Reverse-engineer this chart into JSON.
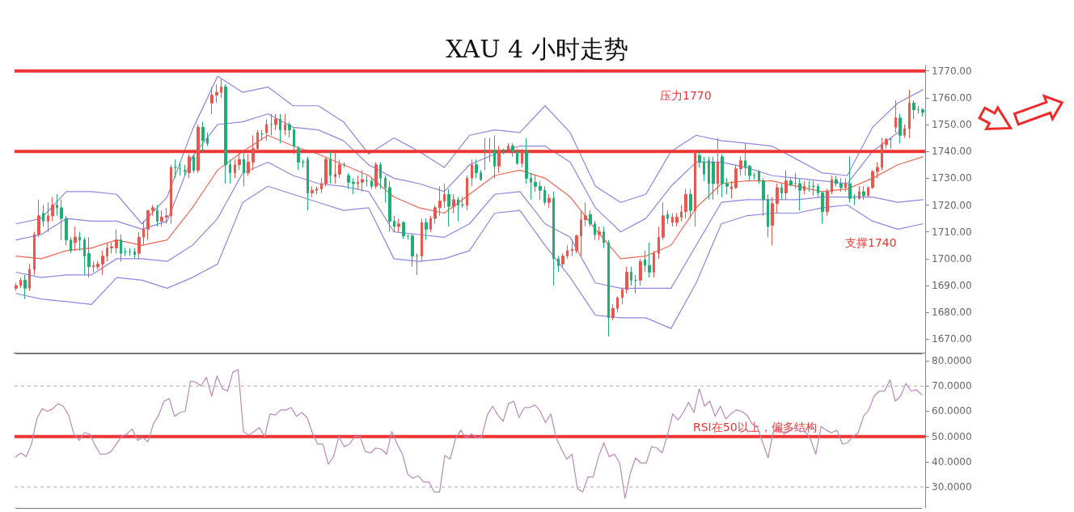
{
  "chart_data": [
    {
      "type": "candlestick",
      "title": "XAU 4 小时走势",
      "categories": [
        null,
        null,
        null,
        null,
        null,
        null,
        null,
        null,
        null,
        null,
        null,
        null,
        null,
        null,
        null,
        null,
        null,
        null,
        null,
        null,
        null,
        null,
        null,
        null,
        null,
        null,
        null,
        null,
        null,
        null,
        null,
        null,
        null,
        null,
        null,
        null,
        null,
        null,
        null,
        null,
        null,
        null,
        null,
        null,
        null,
        null,
        null,
        null,
        null,
        null,
        null,
        null,
        null,
        null,
        null,
        null,
        null,
        null,
        null,
        null,
        null,
        null,
        null,
        null,
        null,
        null,
        null,
        null,
        null,
        null,
        null,
        null,
        null,
        null,
        null,
        null,
        null,
        null,
        null,
        null,
        null,
        null,
        null,
        null,
        null,
        null,
        null,
        null,
        null,
        null,
        null,
        null,
        null,
        null,
        null,
        null,
        null,
        null,
        null,
        null,
        null,
        null,
        null,
        null,
        null,
        null,
        null,
        null,
        null,
        null,
        null,
        null,
        null,
        null,
        null,
        null,
        null,
        null,
        null,
        null,
        null,
        null,
        null,
        null,
        null,
        null,
        null,
        null,
        null,
        null,
        null,
        null,
        null,
        null,
        null,
        null,
        null,
        null,
        null,
        null,
        null,
        null,
        null,
        null,
        null,
        null,
        null,
        null,
        null,
        null,
        null,
        null,
        null,
        null,
        null,
        null,
        null,
        null,
        null,
        null,
        null,
        null,
        null,
        null,
        null,
        null,
        null,
        null,
        null,
        null,
        null,
        null,
        null,
        null,
        null,
        null,
        null,
        null,
        null,
        null,
        null,
        null,
        null,
        null,
        null,
        null,
        null,
        null,
        null,
        null,
        null,
        null,
        null,
        null,
        null,
        null,
        null,
        null,
        null,
        null
      ],
      "ohlc": [
        [
          1689,
          1691,
          1688,
          1690
        ],
        [
          1690,
          1693,
          1689,
          1692
        ],
        [
          1692,
          1694,
          1685,
          1689
        ],
        [
          1689,
          1698,
          1688,
          1696
        ],
        [
          1696,
          1710,
          1694,
          1709
        ],
        [
          1709,
          1722,
          1708,
          1716
        ],
        [
          1717,
          1720,
          1712,
          1714
        ],
        [
          1714,
          1721,
          1710,
          1716
        ],
        [
          1716,
          1723,
          1714,
          1720
        ],
        [
          1720,
          1724,
          1716,
          1719
        ],
        [
          1719,
          1722,
          1707,
          1715
        ],
        [
          1715,
          1716,
          1705,
          1707
        ],
        [
          1707,
          1708,
          1702,
          1703
        ],
        [
          1706,
          1712,
          1703,
          1708
        ],
        [
          1708,
          1710,
          1703,
          1707
        ],
        [
          1707,
          1708,
          1694,
          1701
        ],
        [
          1702,
          1708,
          1693,
          1697
        ],
        [
          1697,
          1699,
          1695,
          1697.5
        ],
        [
          1697,
          1699,
          1696,
          1698
        ],
        [
          1698,
          1703,
          1694,
          1701
        ],
        [
          1701,
          1706,
          1699,
          1704
        ],
        [
          1704,
          1706,
          1702,
          1704.5
        ],
        [
          1704,
          1711,
          1702,
          1707
        ],
        [
          1707,
          1709,
          1699,
          1702
        ],
        [
          1702.5,
          1704,
          1701,
          1702.5
        ],
        [
          1702.5,
          1704,
          1701,
          1702.5
        ],
        [
          1702.5,
          1704,
          1700,
          1701.5
        ],
        [
          1702,
          1710,
          1700,
          1708
        ],
        [
          1708,
          1714,
          1705,
          1711
        ],
        [
          1711,
          1718,
          1707,
          1718
        ],
        [
          1718,
          1720,
          1716,
          1719
        ],
        [
          1718,
          1720,
          1712,
          1714
        ],
        [
          1714,
          1718,
          1712,
          1715.5
        ],
        [
          1715.5,
          1719,
          1713,
          1716
        ],
        [
          1716,
          1735,
          1713,
          1734
        ],
        [
          1734,
          1737,
          1730,
          1734
        ],
        [
          1733.5,
          1736,
          1731,
          1733.5
        ],
        [
          1733,
          1735,
          1731,
          1732.5
        ],
        [
          1732,
          1739,
          1730,
          1738
        ],
        [
          1738,
          1739,
          1732,
          1733
        ],
        [
          1733,
          1750,
          1732,
          1749
        ],
        [
          1749,
          1751,
          1740,
          1744
        ],
        [
          1745,
          1747,
          1742,
          1743
        ],
        [
          1758,
          1764,
          1754,
          1761
        ],
        [
          1761,
          1765,
          1758,
          1762
        ],
        [
          1762,
          1767,
          1760,
          1764
        ],
        [
          1764,
          1765,
          1728,
          1735
        ],
        [
          1735,
          1737,
          1728,
          1732
        ],
        [
          1732,
          1737,
          1730,
          1735
        ],
        [
          1735,
          1740,
          1733,
          1737
        ],
        [
          1737,
          1740,
          1727,
          1732
        ],
        [
          1732,
          1739,
          1731,
          1736
        ],
        [
          1736,
          1746,
          1733,
          1741
        ],
        [
          1741,
          1748,
          1740,
          1747
        ],
        [
          1746.5,
          1748,
          1744,
          1746.5
        ],
        [
          1747,
          1752,
          1744,
          1750
        ],
        [
          1750,
          1754,
          1746,
          1750
        ],
        [
          1750,
          1754,
          1748,
          1752
        ],
        [
          1752,
          1754,
          1743,
          1748
        ],
        [
          1748,
          1754,
          1746,
          1750
        ],
        [
          1750,
          1751,
          1745,
          1748
        ],
        [
          1748,
          1749,
          1739,
          1742
        ],
        [
          1741,
          1742,
          1733,
          1736
        ],
        [
          1736,
          1737,
          1734,
          1736
        ],
        [
          1737,
          1738,
          1718,
          1724.5
        ],
        [
          1724.5,
          1727,
          1723,
          1725.5
        ],
        [
          1725.5,
          1727,
          1724,
          1726
        ],
        [
          1726,
          1730,
          1724.5,
          1728
        ],
        [
          1728,
          1738,
          1727,
          1737
        ],
        [
          1737,
          1740,
          1728,
          1731
        ],
        [
          1730.5,
          1740,
          1728,
          1731.5
        ],
        [
          1731.5,
          1737,
          1730,
          1735
        ],
        [
          1735,
          1736,
          1734,
          1735
        ],
        [
          1731,
          1732,
          1726,
          1728.5
        ],
        [
          1728.5,
          1730,
          1724,
          1728
        ],
        [
          1728,
          1731,
          1726,
          1728.5
        ],
        [
          1728.5,
          1733,
          1725,
          1729.5
        ],
        [
          1729,
          1731,
          1727,
          1729
        ],
        [
          1729,
          1730,
          1726,
          1727
        ],
        [
          1727,
          1736,
          1726,
          1735
        ],
        [
          1735,
          1736,
          1726,
          1730
        ],
        [
          1730,
          1731,
          1721,
          1726.5
        ],
        [
          1726.5,
          1729,
          1710,
          1714
        ],
        [
          1714,
          1716,
          1710,
          1712
        ],
        [
          1712,
          1715,
          1710,
          1713
        ],
        [
          1713.5,
          1714,
          1707.5,
          1708.5
        ],
        [
          1708.5,
          1709,
          1707,
          1708.5
        ],
        [
          1708.5,
          1709,
          1697,
          1701
        ],
        [
          1701,
          1702,
          1694,
          1701
        ],
        [
          1701,
          1715,
          1699,
          1713.5
        ],
        [
          1713.5,
          1715,
          1707,
          1711
        ],
        [
          1711,
          1716,
          1710,
          1715
        ],
        [
          1715,
          1720,
          1713,
          1719
        ],
        [
          1719,
          1727,
          1716,
          1721.5
        ],
        [
          1721.5,
          1728,
          1719,
          1724
        ],
        [
          1724,
          1726,
          1712,
          1719.5
        ],
        [
          1719.5,
          1724,
          1717,
          1722
        ],
        [
          1722,
          1723,
          1714,
          1720
        ],
        [
          1720,
          1723,
          1719,
          1720
        ],
        [
          1720,
          1731,
          1718,
          1730
        ],
        [
          1730,
          1737,
          1727,
          1735
        ],
        [
          1735,
          1737,
          1730,
          1732
        ],
        [
          1732,
          1733,
          1729,
          1729.5
        ],
        [
          1740,
          1745,
          1733,
          1740
        ],
        [
          1739.5,
          1745,
          1736,
          1740.5
        ],
        [
          1740.5,
          1746,
          1730,
          1734.5
        ],
        [
          1734.5,
          1742,
          1732,
          1740.5
        ],
        [
          1740.5,
          1741,
          1739,
          1740.5
        ],
        [
          1740.5,
          1743,
          1739.5,
          1742
        ],
        [
          1742,
          1743,
          1738,
          1740
        ],
        [
          1740,
          1741,
          1735,
          1735.5
        ],
        [
          1735.5,
          1741,
          1734,
          1740
        ],
        [
          1740,
          1745,
          1728,
          1730
        ],
        [
          1730,
          1732,
          1722,
          1728.5
        ],
        [
          1728.5,
          1731,
          1725,
          1727
        ],
        [
          1727,
          1729,
          1722,
          1725.5
        ],
        [
          1725.5,
          1727,
          1720,
          1721
        ],
        [
          1721,
          1724,
          1719,
          1722.5
        ],
        [
          1722.5,
          1725,
          1690,
          1700
        ],
        [
          1700,
          1701,
          1695,
          1697.5
        ],
        [
          1698,
          1702,
          1697,
          1701
        ],
        [
          1701,
          1705,
          1700,
          1703
        ],
        [
          1703,
          1707,
          1701,
          1703.5
        ],
        [
          1703,
          1709,
          1702,
          1708.5
        ],
        [
          1708.5,
          1718,
          1701,
          1714.5
        ],
        [
          1714.5,
          1721,
          1712,
          1716
        ],
        [
          1716.5,
          1718,
          1712,
          1713
        ],
        [
          1713,
          1714,
          1707,
          1709
        ],
        [
          1709,
          1712,
          1707,
          1710
        ],
        [
          1710,
          1712,
          1704,
          1706
        ],
        [
          1706,
          1707,
          1671,
          1678
        ],
        [
          1678,
          1683,
          1677,
          1681.5
        ],
        [
          1681.5,
          1686,
          1680,
          1685.5
        ],
        [
          1685.5,
          1689,
          1683,
          1688.5
        ],
        [
          1688.5,
          1697,
          1687,
          1695
        ],
        [
          1695,
          1697,
          1690,
          1692
        ],
        [
          1692,
          1694,
          1687,
          1692
        ],
        [
          1692,
          1700,
          1690,
          1699
        ],
        [
          1699.5,
          1703,
          1695,
          1697.5
        ],
        [
          1697.5,
          1706,
          1693,
          1695
        ],
        [
          1695,
          1703,
          1693,
          1702
        ],
        [
          1702,
          1712,
          1700,
          1708
        ],
        [
          1708,
          1721,
          1707,
          1716
        ],
        [
          1716.5,
          1718,
          1713,
          1715
        ],
        [
          1713.5,
          1717,
          1712,
          1715.5
        ],
        [
          1713.5,
          1717,
          1712,
          1715.5
        ],
        [
          1715.5,
          1720,
          1714,
          1717.5
        ],
        [
          1717.5,
          1726,
          1715,
          1724
        ],
        [
          1724,
          1726,
          1715,
          1718
        ],
        [
          1718,
          1740,
          1712,
          1739.5
        ],
        [
          1738.5,
          1740,
          1734,
          1736
        ],
        [
          1736,
          1738,
          1729,
          1731.5
        ],
        [
          1736.5,
          1738,
          1722,
          1728
        ],
        [
          1736,
          1738,
          1722,
          1728
        ],
        [
          1728,
          1745,
          1724,
          1736
        ],
        [
          1738,
          1739,
          1723,
          1728
        ],
        [
          1728,
          1730,
          1724,
          1727
        ],
        [
          1726,
          1729,
          1722.5,
          1726.8
        ],
        [
          1726.5,
          1735,
          1726,
          1733.5
        ],
        [
          1733.5,
          1738,
          1731,
          1736.5
        ],
        [
          1736.5,
          1743,
          1731,
          1734
        ],
        [
          1734.5,
          1735,
          1729,
          1731
        ],
        [
          1731,
          1732,
          1729.5,
          1731
        ],
        [
          1732.5,
          1733,
          1728,
          1729
        ],
        [
          1729,
          1730,
          1716,
          1722
        ],
        [
          1722,
          1724,
          1708,
          1712
        ],
        [
          1712.5,
          1723,
          1705,
          1720.5
        ],
        [
          1720.5,
          1728,
          1717,
          1726.5
        ],
        [
          1726.5,
          1728,
          1722,
          1724.5
        ],
        [
          1724.5,
          1733,
          1722,
          1729
        ],
        [
          1729,
          1730,
          1727,
          1727.5
        ],
        [
          1728,
          1732,
          1726,
          1728
        ],
        [
          1728,
          1730,
          1718,
          1725.5
        ],
        [
          1725.5,
          1729,
          1724,
          1727
        ],
        [
          1727,
          1729,
          1725,
          1727
        ],
        [
          1727,
          1729,
          1723.5,
          1727
        ],
        [
          1727,
          1728,
          1723,
          1724.5
        ],
        [
          1724.5,
          1725,
          1713,
          1717.5
        ],
        [
          1717.5,
          1726,
          1716,
          1725
        ],
        [
          1725,
          1731,
          1724,
          1729.5
        ],
        [
          1729.5,
          1731,
          1727,
          1728
        ],
        [
          1728,
          1730,
          1725,
          1726.5
        ],
        [
          1726.5,
          1730,
          1725,
          1728
        ],
        [
          1728,
          1738,
          1721,
          1722.5
        ],
        [
          1722.5,
          1724,
          1720,
          1722.5
        ],
        [
          1722.5,
          1727,
          1722,
          1725
        ],
        [
          1725,
          1727,
          1722,
          1723.5
        ],
        [
          1723.5,
          1727,
          1723,
          1726.5
        ],
        [
          1726.5,
          1733,
          1726,
          1732.5
        ],
        [
          1732.5,
          1736,
          1730,
          1734
        ],
        [
          1734,
          1745,
          1733,
          1742.5
        ],
        [
          1742.5,
          1745,
          1741,
          1744.5
        ],
        [
          1744.5,
          1745,
          1741,
          1744.5
        ],
        [
          1749,
          1759,
          1747,
          1752.5
        ],
        [
          1752.5,
          1754,
          1743,
          1746
        ],
        [
          1746,
          1750,
          1745,
          1748.5
        ],
        [
          1748.5,
          1763,
          1745,
          1758
        ],
        [
          1758,
          1759,
          1752,
          1755.5
        ],
        [
          1755.5,
          1757,
          1754,
          1755.5
        ],
        [
          1755.5,
          1756,
          1753,
          1754.5
        ]
      ],
      "colors": [
        "#e9574f",
        "#e9574f",
        "#1fae74",
        "#e9574f",
        "#e9574f",
        "#e9574f",
        "#1fae74",
        "#e9574f",
        "#e9574f",
        "#1fae74",
        "#1fae74",
        "#1fae74",
        "#1fae74",
        "#e9574f",
        "#1fae74",
        "#1fae74",
        "#1fae74",
        "#e9574f",
        "#e9574f",
        "#e9574f",
        "#e9574f",
        "#e9574f",
        "#e9574f",
        "#1fae74",
        "#1fae74",
        "#1fae74",
        "#1fae74",
        "#e9574f",
        "#e9574f",
        "#e9574f",
        "#e9574f",
        "#1fae74",
        "#e9574f",
        "#e9574f",
        "#e9574f",
        "#1fae74",
        "#1fae74",
        "#1fae74",
        "#e9574f",
        "#1fae74",
        "#e9574f",
        "#1fae74",
        "#1fae74",
        "#e9574f",
        "#e9574f",
        "#e9574f",
        "#1fae74",
        "#1fae74",
        "#e9574f",
        "#e9574f",
        "#1fae74",
        "#e9574f",
        "#e9574f",
        "#e9574f",
        "#1fae74",
        "#e9574f",
        "#1fae74",
        "#e9574f",
        "#1fae74",
        "#e9574f",
        "#1fae74",
        "#1fae74",
        "#1fae74",
        "#1fae74",
        "#1fae74",
        "#e9574f",
        "#e9574f",
        "#e9574f",
        "#e9574f",
        "#1fae74",
        "#e9574f",
        "#e9574f",
        "#1fae74",
        "#1fae74",
        "#1fae74",
        "#e9574f",
        "#e9574f",
        "#1fae74",
        "#1fae74",
        "#e9574f",
        "#1fae74",
        "#1fae74",
        "#1fae74",
        "#1fae74",
        "#e9574f",
        "#1fae74",
        "#1fae74",
        "#1fae74",
        "#1fae74",
        "#e9574f",
        "#1fae74",
        "#e9574f",
        "#e9574f",
        "#e9574f",
        "#e9574f",
        "#1fae74",
        "#e9574f",
        "#1fae74",
        "#1fae74",
        "#e9574f",
        "#e9574f",
        "#1fae74",
        "#1fae74",
        "#1fae74",
        "#e9574f",
        "#1fae74",
        "#e9574f",
        "#1fae74",
        "#e9574f",
        "#1fae74",
        "#1fae74",
        "#e9574f",
        "#1fae74",
        "#1fae74",
        "#1fae74",
        "#1fae74",
        "#1fae74",
        "#e9574f",
        "#1fae74",
        "#1fae74",
        "#e9574f",
        "#e9574f",
        "#e9574f",
        "#e9574f",
        "#e9574f",
        "#e9574f",
        "#1fae74",
        "#1fae74",
        "#e9574f",
        "#1fae74",
        "#1fae74",
        "#e9574f",
        "#e9574f",
        "#e9574f",
        "#e9574f",
        "#1fae74",
        "#1fae74",
        "#e9574f",
        "#1fae74",
        "#1fae74",
        "#e9574f",
        "#e9574f",
        "#e9574f",
        "#1fae74",
        "#e9574f",
        "#e9574f",
        "#e9574f",
        "#e9574f",
        "#1fae74",
        "#e9574f",
        "#1fae74",
        "#1fae74",
        "#1fae74",
        "#1fae74",
        "#e9574f",
        "#1fae74",
        "#1fae74",
        "#e9574f",
        "#e9574f",
        "#e9574f",
        "#1fae74",
        "#1fae74",
        "#1fae74",
        "#1fae74",
        "#1fae74",
        "#1fae74",
        "#e9574f",
        "#e9574f",
        "#1fae74",
        "#e9574f",
        "#1fae74",
        "#1fae74",
        "#1fae74",
        "#e9574f",
        "#1fae74",
        "#1fae74",
        "#1fae74",
        "#1fae74",
        "#e9574f",
        "#e9574f",
        "#1fae74",
        "#1fae74",
        "#e9574f",
        "#1fae74",
        "#1fae74",
        "#e9574f",
        "#1fae74",
        "#e9574f",
        "#e9574f",
        "#e9574f",
        "#e9574f",
        "#e9574f",
        "#1fae74",
        "#e9574f",
        "#1fae74",
        "#e9574f",
        "#e9574f",
        "#1fae74",
        "#1fae74",
        "#1fae74"
      ],
      "ylim": [
        1665,
        1772
      ],
      "yticks": [
        {
          "value": 1670,
          "label": "1670.00"
        },
        {
          "value": 1680,
          "label": "1680.00"
        },
        {
          "value": 1690,
          "label": "1690.00"
        },
        {
          "value": 1700,
          "label": "1700.00"
        },
        {
          "value": 1710,
          "label": "1710.00"
        },
        {
          "value": 1720,
          "label": "1720.00"
        },
        {
          "value": 1730,
          "label": "1730.00"
        },
        {
          "value": 1740,
          "label": "1740.00"
        },
        {
          "value": 1750,
          "label": "1750.00"
        },
        {
          "value": 1760,
          "label": "1760.00"
        },
        {
          "value": 1770,
          "label": "1770.00"
        }
      ],
      "ref_lines": [
        {
          "axis": "y",
          "value": 1770,
          "label": "压力1770",
          "color": "#ee3535"
        },
        {
          "axis": "y",
          "value": 1740,
          "label": "支撑1740",
          "color": "#ee3535"
        }
      ],
      "tick_labels": "y",
      "grid": false
    },
    {
      "type": "line",
      "categories": [
        null,
        null,
        null,
        null,
        null,
        null,
        null,
        null,
        null,
        null,
        null,
        null,
        null,
        null,
        null,
        null,
        null,
        null,
        null,
        null,
        null,
        null,
        null,
        null,
        null,
        null,
        null,
        null,
        null,
        null,
        null,
        null,
        null,
        null,
        null,
        null,
        null
      ],
      "series": [
        {
          "color": "#8f86e3",
          "values": [
            1713,
            1715,
            1725,
            1725,
            1724,
            1713,
            1723,
            1748,
            1768,
            1762,
            1764,
            1757,
            1757,
            1751,
            1739,
            1745,
            1740,
            1734,
            1746,
            1748,
            1747,
            1757,
            1747,
            1727,
            1721,
            1724,
            1740,
            1746,
            1744,
            1743,
            1742,
            1737,
            1732,
            1731,
            1749,
            1758,
            1763
          ]
        },
        {
          "color": "#8f86e3",
          "values": [
            1707,
            1709,
            1715,
            1714,
            1714,
            1711,
            1714,
            1738,
            1750,
            1751,
            1754,
            1749,
            1748,
            1744,
            1735,
            1730,
            1728,
            1725,
            1735,
            1739,
            1742,
            1742,
            1736,
            1719,
            1710,
            1715,
            1727,
            1736,
            1736,
            1734,
            1731,
            1730,
            1729,
            1728,
            1740,
            1747,
            null
          ]
        },
        {
          "color": "#ee6a55",
          "values": [
            1701,
            1700,
            1703,
            1704,
            1707,
            1705,
            1707,
            1719,
            1733,
            1740,
            1746,
            1742,
            1739,
            1735,
            1731,
            1723,
            1719,
            1717,
            1724,
            1731,
            1733,
            1730,
            1723,
            1711,
            1700,
            1701,
            1705,
            1719,
            1728,
            1729,
            1729,
            1727,
            1725,
            1726,
            1730,
            1735,
            1738
          ]
        },
        {
          "color": "#8f86e3",
          "values": [
            1695,
            1693,
            1694,
            1694,
            1700,
            1700,
            1699,
            1705,
            1715,
            1732,
            1736,
            1731,
            1728,
            1727,
            1725,
            1710,
            1709,
            1708,
            1713,
            1724,
            1725,
            1713,
            1708,
            1691,
            1689,
            1689,
            1689,
            1705,
            1721,
            1722,
            1722,
            1722,
            1723,
            1723,
            1723,
            1721,
            1722
          ]
        },
        {
          "color": "#8f86e3",
          "values": [
            1687,
            1685,
            1684,
            1683,
            1693,
            1692,
            1689,
            1693,
            1698,
            1721,
            1727,
            1724,
            1721,
            1718,
            1719,
            1700,
            1699,
            1700,
            1703,
            1717,
            1718,
            1705,
            1693,
            1679,
            1678,
            1678,
            1674,
            1691,
            1713,
            1716,
            1717,
            1717,
            1719,
            1720,
            1714,
            1711,
            1713
          ]
        }
      ],
      "ylim": [
        1665,
        1772
      ],
      "tick_labels": false,
      "marker": "none",
      "grid": false
    },
    {
      "type": "line",
      "categories": [
        null,
        null,
        null,
        null,
        null,
        null,
        null,
        null,
        null,
        null,
        null,
        null,
        null,
        null,
        null,
        null,
        null,
        null,
        null,
        null,
        null,
        null,
        null,
        null,
        null,
        null,
        null,
        null,
        null,
        null,
        null,
        null,
        null,
        null,
        null,
        null,
        null,
        null,
        null,
        null,
        null,
        null,
        null,
        null,
        null,
        null,
        null,
        null,
        null,
        null,
        null,
        null,
        null,
        null,
        null,
        null,
        null,
        null,
        null,
        null,
        null,
        null,
        null,
        null,
        null,
        null,
        null,
        null,
        null,
        null,
        null,
        null,
        null,
        null,
        null,
        null,
        null,
        null,
        null,
        null,
        null,
        null,
        null,
        null,
        null,
        null,
        null,
        null,
        null,
        null,
        null,
        null,
        null,
        null,
        null,
        null,
        null,
        null,
        null,
        null,
        null,
        null,
        null,
        null,
        null,
        null,
        null,
        null,
        null,
        null,
        null,
        null,
        null,
        null,
        null,
        null,
        null,
        null,
        null,
        null,
        null,
        null,
        null,
        null,
        null,
        null,
        null,
        null,
        null,
        null,
        null,
        null,
        null,
        null,
        null,
        null,
        null,
        null,
        null,
        null,
        null,
        null,
        null,
        null,
        null,
        null,
        null,
        null,
        null,
        null,
        null,
        null,
        null,
        null,
        null,
        null,
        null,
        null,
        null,
        null,
        null,
        null,
        null,
        null,
        null,
        null,
        null,
        null,
        null,
        null,
        null,
        null
      ],
      "series": [
        {
          "color": "#b98ab9",
          "values": [
            42,
            43.5,
            42,
            47,
            57,
            61,
            60,
            61,
            63,
            62,
            58.5,
            51,
            48.5,
            51.5,
            51,
            46.5,
            43,
            43,
            44,
            47,
            50,
            51,
            53,
            48.5,
            49.5,
            48,
            55,
            58.5,
            64,
            65,
            58,
            59.5,
            60,
            72,
            71.5,
            70,
            73.5,
            66,
            74,
            69,
            68,
            75.5,
            76.5,
            52,
            50.5,
            52,
            53.5,
            50,
            59,
            58.5,
            60.5,
            60.5,
            61.5,
            58,
            59.5,
            57.5,
            51.5,
            47,
            47,
            39,
            42,
            50,
            46,
            47,
            50,
            50,
            44,
            43.5,
            45.5,
            45,
            43,
            52,
            47,
            43,
            35,
            33.5,
            34.5,
            32,
            32,
            28,
            28,
            42.5,
            41,
            49,
            52.5,
            49.5,
            51,
            49.5,
            50,
            58.5,
            62,
            58.5,
            56,
            63,
            64,
            57.5,
            61.5,
            61.5,
            62.5,
            60,
            55.5,
            59,
            49.5,
            45,
            41,
            43,
            29.5,
            28,
            34,
            34,
            42,
            47.5,
            42,
            43,
            39.5,
            25.5,
            35.5,
            41.5,
            39.5,
            39.5,
            46,
            45.5,
            43.5,
            50.5,
            59,
            56.5,
            59.5,
            63.5,
            59.5,
            69,
            62,
            64,
            58,
            62,
            57,
            59,
            60.5,
            60,
            58.5,
            55,
            53.5,
            47.5,
            41.5,
            52,
            54,
            51,
            52,
            53.5,
            52,
            52,
            49,
            43,
            54,
            52.5,
            51.5,
            52.5,
            47,
            47.5,
            50,
            51.5,
            58,
            60.5,
            66,
            68,
            68,
            72.5,
            64,
            66,
            71,
            68,
            68.5,
            66.5
          ]
        }
      ],
      "ylim": [
        21.7,
        82.9
      ],
      "yticks": [
        {
          "value": 30,
          "label": "30.0000"
        },
        {
          "value": 40,
          "label": "40.0000"
        },
        {
          "value": 50,
          "label": "50.0000"
        },
        {
          "value": 60,
          "label": "60.0000"
        },
        {
          "value": 70,
          "label": "70.0000"
        },
        {
          "value": 80,
          "label": "80.0000"
        }
      ],
      "ref_lines": [
        {
          "axis": "y",
          "value": 70,
          "color": "#aaaaaa",
          "line_style": "dashed"
        },
        {
          "axis": "y",
          "value": 30,
          "color": "#aaaaaa",
          "line_style": "dashed"
        },
        {
          "axis": "y",
          "value": 50,
          "label": "RSI在50以上，偏多结构",
          "color": "#ee3535"
        }
      ],
      "tick_labels": "y",
      "marker": "none",
      "grid": false
    }
  ]
}
